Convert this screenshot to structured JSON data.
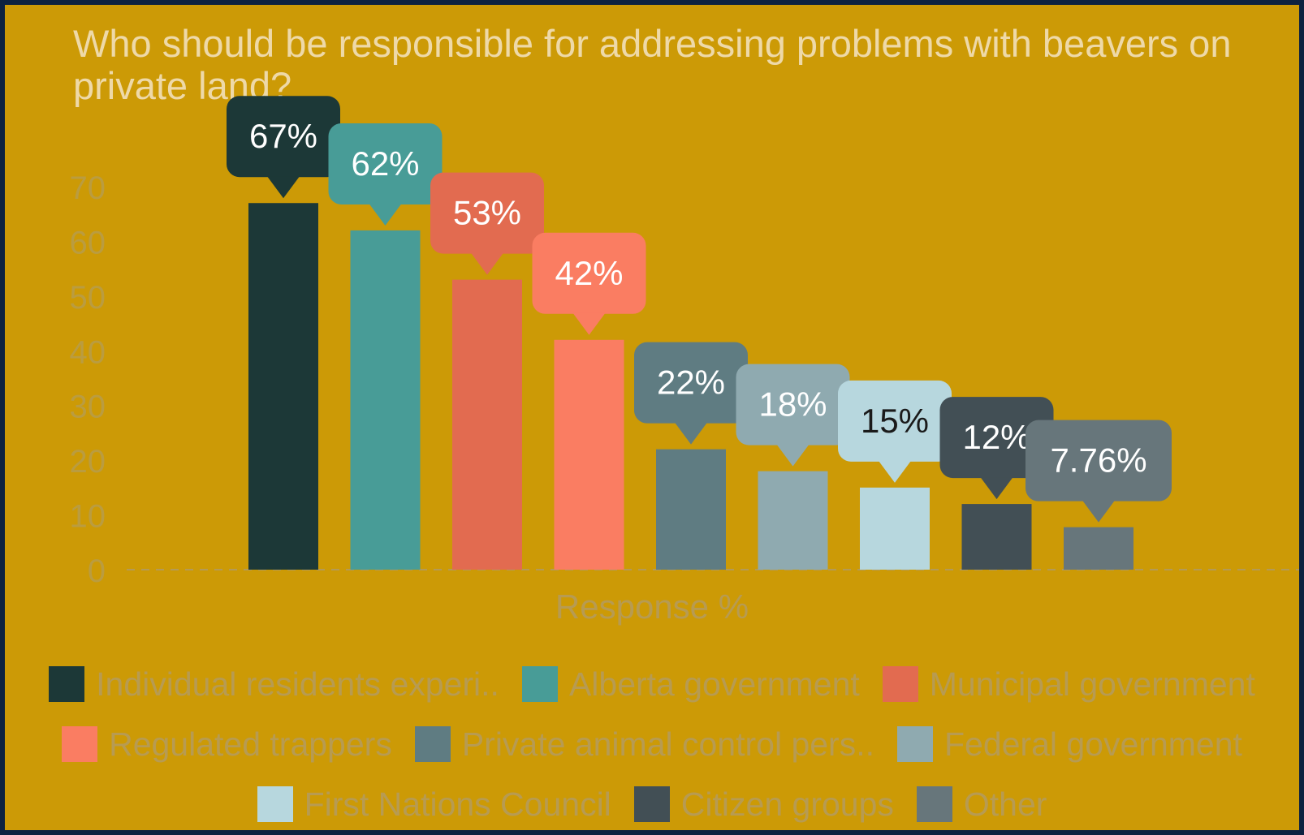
{
  "chart_data": {
    "type": "bar",
    "title": "Who should be responsible for addressing problems with beavers on private land?",
    "xlabel": "Response %",
    "ylabel": "",
    "ylim": [
      0,
      70
    ],
    "yticks": [
      0,
      10,
      20,
      30,
      40,
      50,
      60,
      70
    ],
    "gridline": "dashed at 0",
    "legend_position": "bottom",
    "categories": [
      "Individual residents experi..",
      "Alberta government",
      "Municipal government",
      "Regulated trappers",
      "Private animal control pers..",
      "Federal government",
      "First Nations Council",
      "Citizen groups",
      "Other"
    ],
    "values": [
      67,
      62,
      53,
      42,
      22,
      18,
      15,
      12,
      7.76
    ],
    "value_labels": [
      "67%",
      "62%",
      "53%",
      "42%",
      "22%",
      "18%",
      "15%",
      "12%",
      "7.76%"
    ],
    "colors": [
      "#1c3837",
      "#489c97",
      "#e26b50",
      "#fa7d62",
      "#5f7c82",
      "#8faab0",
      "#b7d7de",
      "#424f55",
      "#67767b"
    ],
    "label_text_colors": [
      "#ffffff",
      "#ffffff",
      "#ffffff",
      "#ffffff",
      "#ffffff",
      "#ffffff",
      "#1a1a1a",
      "#ffffff",
      "#ffffff"
    ]
  }
}
